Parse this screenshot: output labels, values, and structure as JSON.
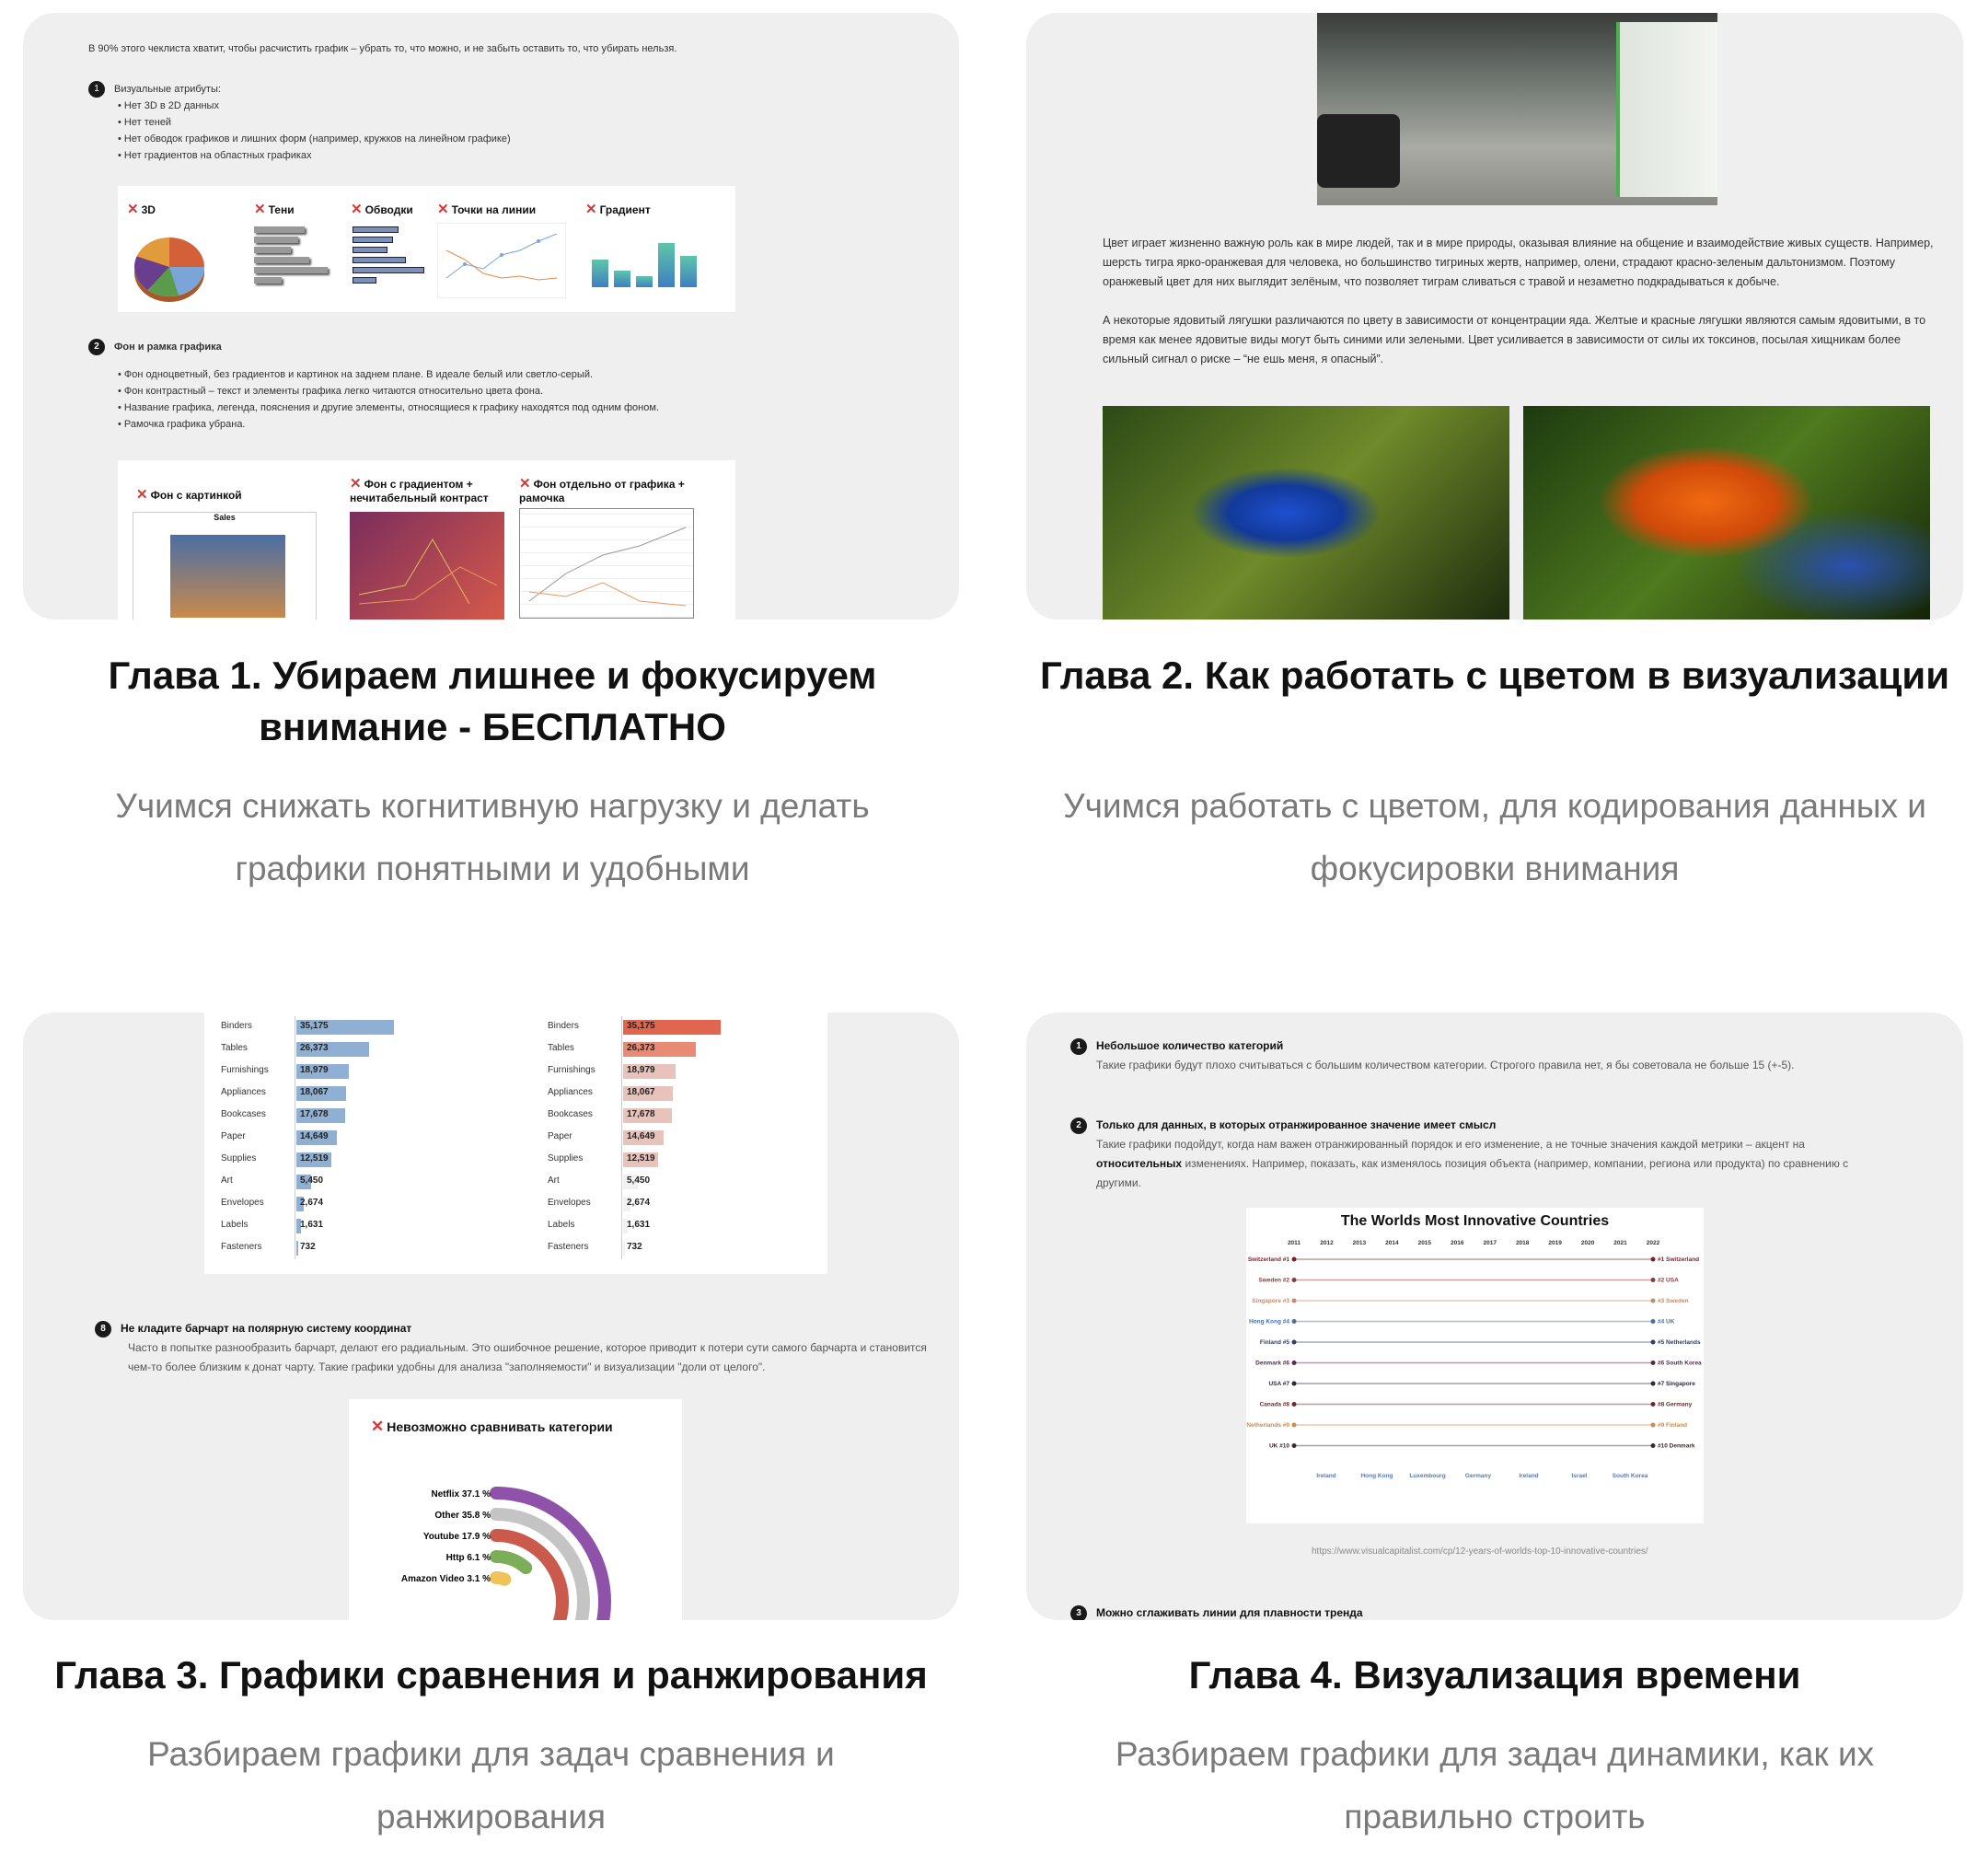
{
  "cards": [
    {
      "title": "Глава 1. Убираем лишнее и фокусируем внимание - БЕСПЛАТНО",
      "subtitle": "Учимся снижать когнитивную нагрузку и делать графики понятными и удобными",
      "preview": {
        "intro": "В 90% этого чеклиста хватит, чтобы расчистить график – убрать то, что можно, и не забыть оставить то, что убирать нельзя.",
        "section1": {
          "num": "1",
          "heading": "Визуальные атрибуты:",
          "items": [
            "Нет 3D в 2D данных",
            "Нет теней",
            "Нет обводок графиков и лишних форм (например, кружков на линейном графике)",
            "Нет градиентов на областных графиках"
          ]
        },
        "examples1": [
          "3D",
          "Тени",
          "Обводки",
          "Точки на линии",
          "Градиент"
        ],
        "section2": {
          "num": "2",
          "heading": "Фон и рамка графика",
          "items": [
            "Фон одноцветный, без градиентов и картинок на заднем плане. В идеале белый или светло-серый.",
            "Фон контрастный – текст и элементы графика легко читаются относительно цвета фона.",
            "Название графика, легенда, пояснения и другие элементы, относящиеся к графику находятся под одним фоном.",
            "Рамочка графика убрана."
          ]
        },
        "examples2": [
          "Фон с картинкой",
          "Фон с градиентом + нечитабельный контраст",
          "Фон отдельно от графика + рамочка"
        ],
        "sales_label": "Sales"
      }
    },
    {
      "title": "Глава 2. Как работать с цветом в визуализации",
      "subtitle": "Учимся работать с цветом, для кодирования данных и фокусировки внимания",
      "preview": {
        "paragraph1": "Цвет играет жизненно важную роль как в мире людей, так и в мире природы, оказывая влияние на общение и взаимодействие живых существ. Например, шерсть тигра ярко-оранжевая для человека, но большинство тигриных жертв, например, олени, страдают красно-зеленым дальтонизмом. Поэтому оранжевый цвет для них выглядит зелёным, что позволяет тиграм сливаться с травой и незаметно подкрадываться к добыче.",
        "paragraph2": "А некоторые ядовитый лягушки различаются по цвету в зависимости от концентрации яда. Желтые и красные лягушки являются самым ядовитыми, в то время как менее ядовитые виды могут быть синими или зелеными. Цвет усиливается в зависимости от силы их токсинов, посылая хищникам более сильный сигнал о риске – “не ешь меня, я опасный”."
      }
    },
    {
      "title": "Глава 3. Графики сравнения и ранжирования",
      "subtitle": "Разбираем графики для задач сравнения и ранжирования",
      "preview": {
        "bars": {
          "categories": [
            "Binders",
            "Tables",
            "Furnishings",
            "Appliances",
            "Bookcases",
            "Paper",
            "Supplies",
            "Art",
            "Envelopes",
            "Labels",
            "Fasteners"
          ],
          "values": [
            35175,
            26373,
            18979,
            18067,
            17678,
            14649,
            12519,
            5450,
            2674,
            1631,
            732
          ],
          "value_labels": [
            "35,175",
            "26,373",
            "18,979",
            "18,067",
            "17,678",
            "14,649",
            "12,519",
            "5,450",
            "2,674",
            "1,631",
            "732"
          ],
          "colors": {
            "blue": "#8fb0d3",
            "red": "#e0664f",
            "pink": "#e8c3bb"
          }
        },
        "section8": {
          "num": "8",
          "heading": "Не кладите барчарт на полярную систему координат",
          "text": "Часто в попытке разнообразить барчарт, делают его радиальным. Это ошибочное решение, которое приводит к потери сути самого барчарта и становится чем-то более близким к донат чарту. Такие графики удобны для анализа \"заполняемости\" и визуализации \"доли от целого\"."
        },
        "radial": {
          "title": "Невозможно сравнивать категории",
          "items": [
            {
              "label": "Netflix",
              "pct": "37.1 %",
              "value": 37.1,
              "color": "#8e52a8"
            },
            {
              "label": "Other",
              "pct": "35.8 %",
              "value": 35.8,
              "color": "#c4c4c4"
            },
            {
              "label": "Youtube",
              "pct": "17.9 %",
              "value": 17.9,
              "color": "#c95a4c"
            },
            {
              "label": "Http",
              "pct": "6.1 %",
              "value": 6.1,
              "color": "#7cae5a"
            },
            {
              "label": "Amazon Video",
              "pct": "3.1 %",
              "value": 3.1,
              "color": "#efc35a"
            }
          ]
        }
      }
    },
    {
      "title": "Глава 4. Визуализация времени",
      "subtitle": "Разбираем графики для задач динамики, как их правильно строить",
      "preview": {
        "section1": {
          "num": "1",
          "heading": "Небольшое количество категорий",
          "text": "Такие графики будут плохо считываться с большим количеством категории. Строгого правила нет, я бы советовала не больше 15 (+-5)."
        },
        "section2": {
          "num": "2",
          "heading": "Только для данных, в которых отранжированное значение имеет смысл",
          "text_before": "Такие графики подойдут, когда нам важен отранжированный порядок и его изменение, а не точные значения каждой метрики – акцент на ",
          "text_bold": "относительных",
          "text_after": " изменениях. Например, показать, как изменялось позиция объекта (например, компании, региона или продукта) по сравнению с другими."
        },
        "bump": {
          "title": "The Worlds Most Innovative Countries",
          "years": [
            "2011",
            "2012",
            "2013",
            "2014",
            "2015",
            "2016",
            "2017",
            "2018",
            "2019",
            "2020",
            "2021",
            "2022"
          ],
          "left": [
            "Switzerland #1",
            "Sweden #2",
            "Singapore #3",
            "Hong Kong #4",
            "Finland #5",
            "Denmark #6",
            "USA #7",
            "Canada #8",
            "Netherlands #9",
            "UK #10"
          ],
          "right": [
            "#1 Switzerland",
            "#2 USA",
            "#3 Sweden",
            "#4 UK",
            "#5 Netherlands",
            "#6 South Korea",
            "#7 Singapore",
            "#8 Germany",
            "#9 Finland",
            "#10 Denmark"
          ],
          "bottom": [
            "Ireland",
            "Hong Kong",
            "Luxembourg",
            "Germany",
            "Ireland",
            "Israel",
            "South Korea"
          ]
        },
        "source_url": "https://www.visualcapitalist.com/cp/12-years-of-worlds-top-10-innovative-countries/",
        "section3": {
          "num": "3",
          "heading": "Можно сглаживать линии для плавности тренда"
        }
      }
    }
  ]
}
